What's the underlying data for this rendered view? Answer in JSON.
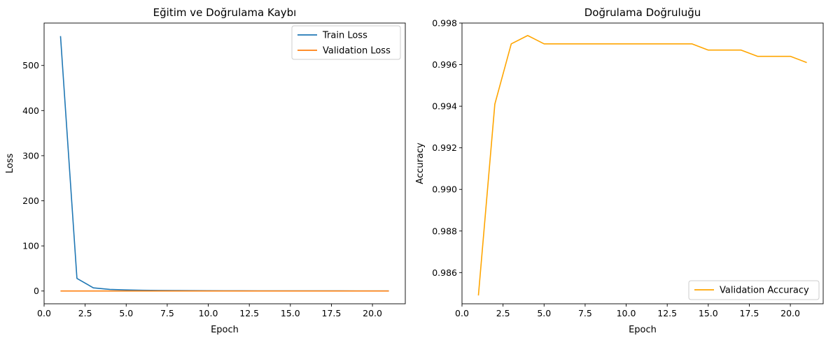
{
  "chart_data": [
    {
      "type": "line",
      "title": "Eğitim ve Doğrulama Kaybı",
      "xlabel": "Epoch",
      "ylabel": "Loss",
      "xlim": [
        0.0,
        22.0
      ],
      "ylim": [
        -28.3,
        594.0
      ],
      "xticks": [
        0.0,
        2.5,
        5.0,
        7.5,
        10.0,
        12.5,
        15.0,
        17.5,
        20.0
      ],
      "xtick_labels": [
        "0.0",
        "2.5",
        "5.0",
        "7.5",
        "10.0",
        "12.5",
        "15.0",
        "17.5",
        "20.0"
      ],
      "yticks": [
        0,
        100,
        200,
        300,
        400,
        500
      ],
      "ytick_labels": [
        "0",
        "100",
        "200",
        "300",
        "400",
        "500"
      ],
      "legend_position": "top-right",
      "grid": false,
      "x": [
        1,
        2,
        3,
        4,
        5,
        6,
        7,
        8,
        9,
        10,
        11,
        12,
        13,
        14,
        15,
        16,
        17,
        18,
        19,
        20,
        21
      ],
      "series": [
        {
          "name": "Train Loss",
          "color": "#1f77b4",
          "values": [
            565,
            28,
            7,
            3.5,
            2.3,
            1.7,
            1.3,
            1.0,
            0.8,
            0.6,
            0.5,
            0.4,
            0.35,
            0.3,
            0.25,
            0.22,
            0.2,
            0.18,
            0.16,
            0.15,
            0.14
          ]
        },
        {
          "name": "Validation Loss",
          "color": "#ff7f0e",
          "values": [
            0.05,
            0.02,
            0.015,
            0.012,
            0.012,
            0.012,
            0.012,
            0.012,
            0.012,
            0.012,
            0.012,
            0.012,
            0.012,
            0.012,
            0.013,
            0.013,
            0.013,
            0.014,
            0.014,
            0.014,
            0.015
          ]
        }
      ]
    },
    {
      "type": "line",
      "title": "Doğrulama Doğruluğu",
      "xlabel": "Epoch",
      "ylabel": "Accuracy",
      "xlim": [
        0.0,
        22.0
      ],
      "ylim": [
        0.9845,
        0.998
      ],
      "xticks": [
        0.0,
        2.5,
        5.0,
        7.5,
        10.0,
        12.5,
        15.0,
        17.5,
        20.0
      ],
      "xtick_labels": [
        "0.0",
        "2.5",
        "5.0",
        "7.5",
        "10.0",
        "12.5",
        "15.0",
        "17.5",
        "20.0"
      ],
      "yticks": [
        0.986,
        0.988,
        0.99,
        0.992,
        0.994,
        0.996,
        0.998
      ],
      "ytick_labels": [
        "0.986",
        "0.988",
        "0.990",
        "0.992",
        "0.994",
        "0.996",
        "0.998"
      ],
      "legend_position": "bottom-right",
      "grid": false,
      "x": [
        1,
        2,
        3,
        4,
        5,
        6,
        7,
        8,
        9,
        10,
        11,
        12,
        13,
        14,
        15,
        16,
        17,
        18,
        19,
        20,
        21
      ],
      "series": [
        {
          "name": "Validation Accuracy",
          "color": "#ffa500",
          "values": [
            0.9849,
            0.9941,
            0.997,
            0.9974,
            0.997,
            0.997,
            0.997,
            0.997,
            0.997,
            0.997,
            0.997,
            0.997,
            0.997,
            0.997,
            0.9967,
            0.9967,
            0.9967,
            0.9964,
            0.9964,
            0.9964,
            0.9961
          ]
        }
      ]
    }
  ]
}
